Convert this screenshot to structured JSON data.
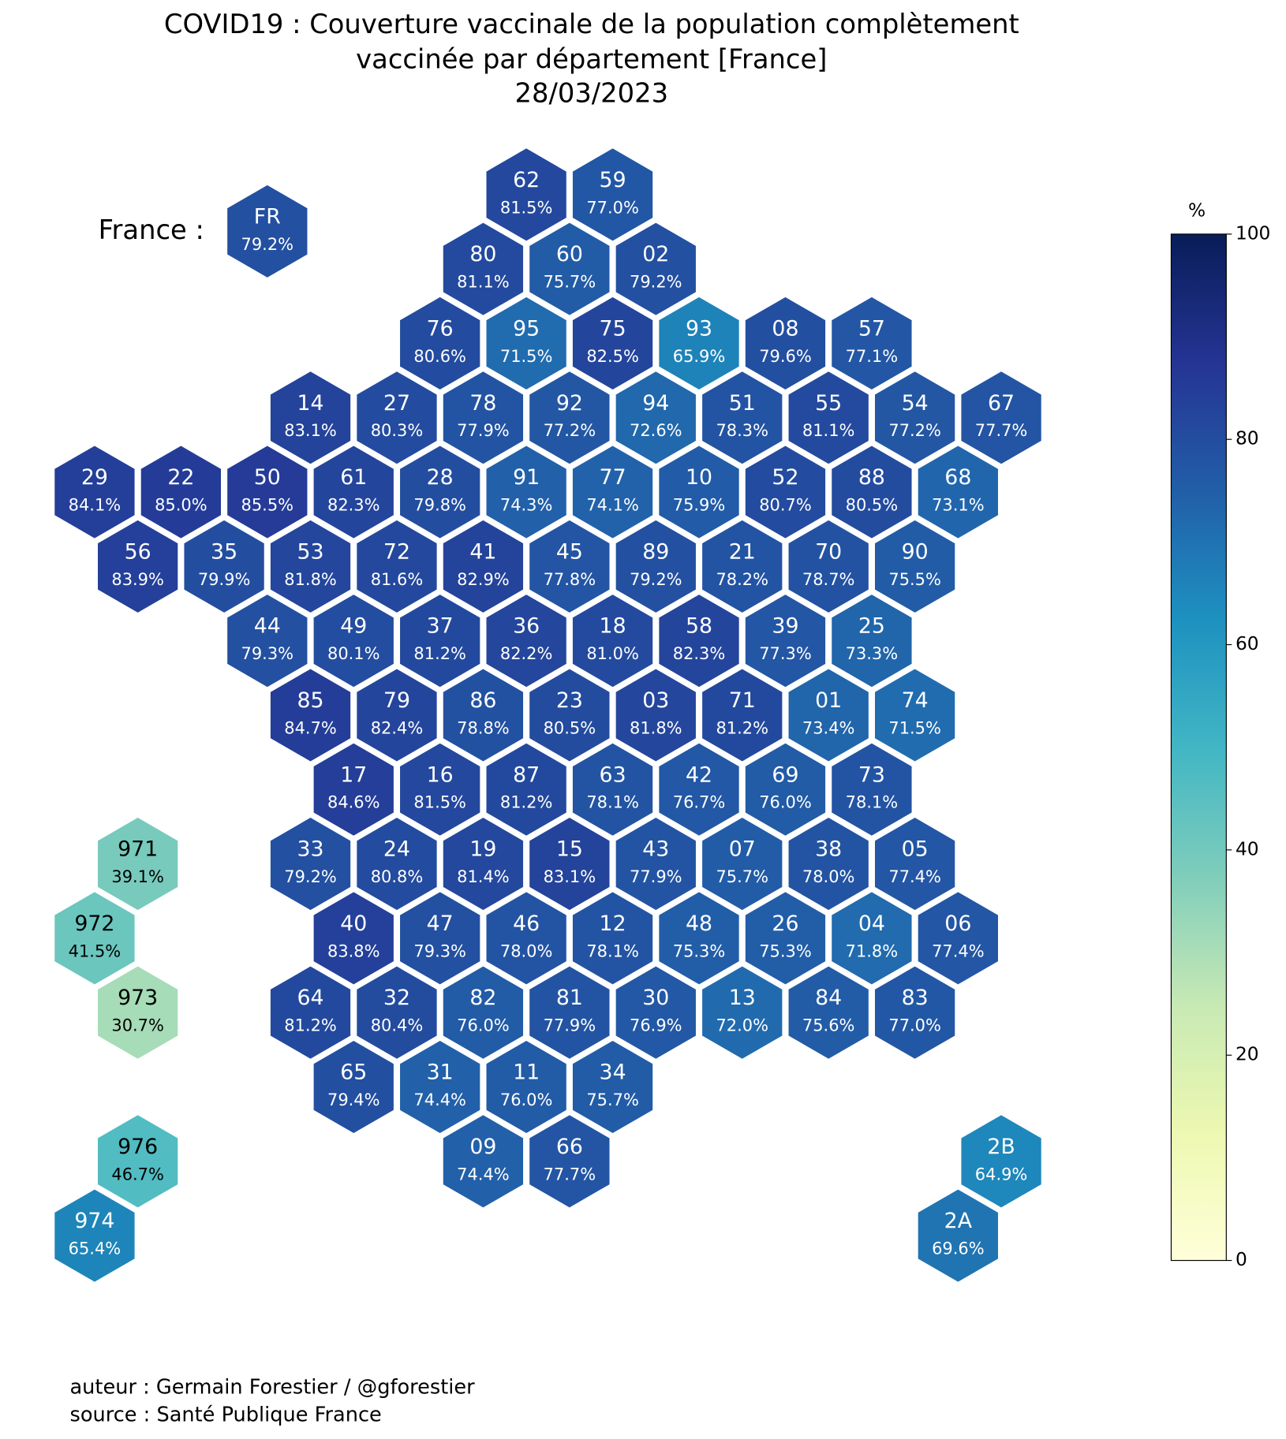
{
  "chart_data": {
    "type": "hexmap",
    "title": [
      "COVID19 : Couverture vaccinale de la population complètement",
      "vaccinée par département [France]",
      "28/03/2023"
    ],
    "national": {
      "label": "France :",
      "code": "FR",
      "value": 79.2,
      "value_label": "79.2%"
    },
    "colormap": "YlGnBu",
    "categories": [
      "62",
      "59",
      "80",
      "60",
      "02",
      "76",
      "95",
      "75",
      "93",
      "08",
      "57",
      "14",
      "27",
      "78",
      "92",
      "94",
      "51",
      "55",
      "54",
      "67",
      "29",
      "22",
      "50",
      "61",
      "28",
      "91",
      "77",
      "10",
      "52",
      "88",
      "68",
      "56",
      "35",
      "53",
      "72",
      "41",
      "45",
      "89",
      "21",
      "70",
      "90",
      "44",
      "49",
      "37",
      "36",
      "18",
      "58",
      "39",
      "25",
      "85",
      "79",
      "86",
      "23",
      "03",
      "71",
      "01",
      "74",
      "17",
      "16",
      "87",
      "63",
      "42",
      "69",
      "73",
      "971",
      "33",
      "24",
      "19",
      "15",
      "43",
      "07",
      "38",
      "05",
      "972",
      "40",
      "47",
      "46",
      "12",
      "48",
      "26",
      "04",
      "06",
      "973",
      "64",
      "32",
      "82",
      "81",
      "30",
      "13",
      "84",
      "83",
      "65",
      "31",
      "11",
      "34",
      "976",
      "09",
      "66",
      "2B",
      "974",
      "2A"
    ],
    "values": [
      81.5,
      77.0,
      81.1,
      75.7,
      79.2,
      80.6,
      71.5,
      82.5,
      65.9,
      79.6,
      77.1,
      83.1,
      80.3,
      77.9,
      77.2,
      72.6,
      78.3,
      81.1,
      77.2,
      77.7,
      84.1,
      85.0,
      85.5,
      82.3,
      79.8,
      74.3,
      74.1,
      75.9,
      80.7,
      80.5,
      73.1,
      83.9,
      79.9,
      81.8,
      81.6,
      82.9,
      77.8,
      79.2,
      78.2,
      78.7,
      75.5,
      79.3,
      80.1,
      81.2,
      82.2,
      81.0,
      82.3,
      77.3,
      73.3,
      84.7,
      82.4,
      78.8,
      80.5,
      81.8,
      81.2,
      73.4,
      71.5,
      84.6,
      81.5,
      81.2,
      78.1,
      76.7,
      76.0,
      78.1,
      39.1,
      79.2,
      80.8,
      81.4,
      83.1,
      77.9,
      75.7,
      78.0,
      77.4,
      41.5,
      83.8,
      79.3,
      78.0,
      78.1,
      75.3,
      75.3,
      71.8,
      77.4,
      30.7,
      81.2,
      80.4,
      76.0,
      77.9,
      76.9,
      72.0,
      75.6,
      77.0,
      79.4,
      74.4,
      76.0,
      75.7,
      46.7,
      74.4,
      77.7,
      64.9,
      65.4,
      69.6
    ],
    "value_labels": [
      "81.5%",
      "77.0%",
      "81.1%",
      "75.7%",
      "79.2%",
      "80.6%",
      "71.5%",
      "82.5%",
      "65.9%",
      "79.6%",
      "77.1%",
      "83.1%",
      "80.3%",
      "77.9%",
      "77.2%",
      "72.6%",
      "78.3%",
      "81.1%",
      "77.2%",
      "77.7%",
      "84.1%",
      "85.0%",
      "85.5%",
      "82.3%",
      "79.8%",
      "74.3%",
      "74.1%",
      "75.9%",
      "80.7%",
      "80.5%",
      "73.1%",
      "83.9%",
      "79.9%",
      "81.8%",
      "81.6%",
      "82.9%",
      "77.8%",
      "79.2%",
      "78.2%",
      "78.7%",
      "75.5%",
      "79.3%",
      "80.1%",
      "81.2%",
      "82.2%",
      "81.0%",
      "82.3%",
      "77.3%",
      "73.3%",
      "84.7%",
      "82.4%",
      "78.8%",
      "80.5%",
      "81.8%",
      "81.2%",
      "73.4%",
      "71.5%",
      "84.6%",
      "81.5%",
      "81.2%",
      "78.1%",
      "76.7%",
      "76.0%",
      "78.1%",
      "39.1%",
      "79.2%",
      "80.8%",
      "81.4%",
      "83.1%",
      "77.9%",
      "75.7%",
      "78.0%",
      "77.4%",
      "41.5%",
      "83.8%",
      "79.3%",
      "78.0%",
      "78.1%",
      "75.3%",
      "75.3%",
      "71.8%",
      "77.4%",
      "30.7%",
      "81.2%",
      "80.4%",
      "76.0%",
      "77.9%",
      "76.9%",
      "72.0%",
      "75.6%",
      "77.0%",
      "79.4%",
      "74.4%",
      "76.0%",
      "75.7%",
      "46.7%",
      "74.4%",
      "77.7%",
      "64.9%",
      "65.4%",
      "69.6%"
    ],
    "colorbar_label": "%",
    "ylim": [
      0,
      100
    ],
    "yticks": [
      0,
      20,
      40,
      60,
      80,
      100
    ],
    "notes": [
      "auteur : Germain Forestier / @gforestier",
      "source : Santé Publique France"
    ]
  }
}
